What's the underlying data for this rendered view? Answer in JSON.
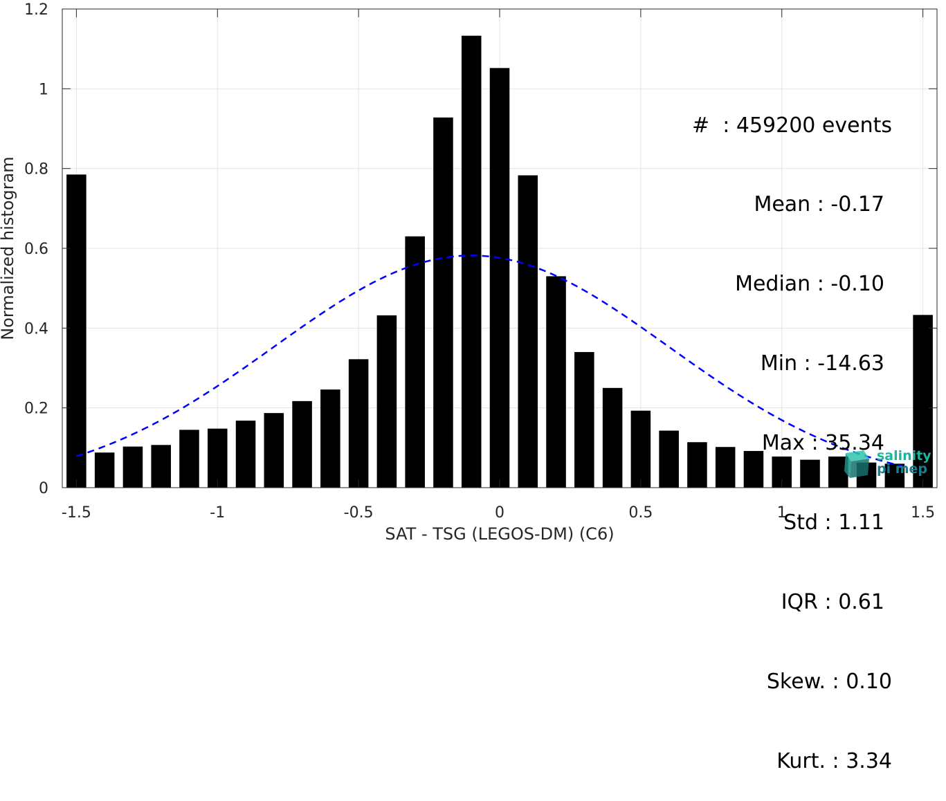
{
  "chart_data": {
    "type": "bar",
    "xlabel": "SAT - TSG (LEGOS-DM) (C6)",
    "ylabel": "Normalized histogram",
    "xlim": [
      -1.55,
      1.55
    ],
    "ylim": [
      0,
      1.2
    ],
    "x_ticks": [
      -1.5,
      -1,
      -0.5,
      0,
      0.5,
      1,
      1.5
    ],
    "x_tick_labels": [
      "-1.5",
      "-1",
      "-0.5",
      "0",
      "0.5",
      "1",
      "1.5"
    ],
    "y_ticks": [
      0,
      0.2,
      0.4,
      0.6,
      0.8,
      1,
      1.2
    ],
    "y_tick_labels": [
      "0",
      "0.2",
      "0.4",
      "0.6",
      "0.8",
      "1",
      "1.2"
    ],
    "grid": true,
    "bar_width": 0.07,
    "bar_color": "#000000",
    "bin_centers": [
      -1.5,
      -1.4,
      -1.3,
      -1.2,
      -1.1,
      -1.0,
      -0.9,
      -0.8,
      -0.7,
      -0.6,
      -0.5,
      -0.4,
      -0.3,
      -0.2,
      -0.1,
      0.0,
      0.1,
      0.2,
      0.3,
      0.4,
      0.5,
      0.6,
      0.7,
      0.8,
      0.9,
      1.0,
      1.1,
      1.2,
      1.3,
      1.4,
      1.5
    ],
    "values": [
      0.785,
      0.088,
      0.103,
      0.107,
      0.145,
      0.148,
      0.168,
      0.187,
      0.217,
      0.246,
      0.322,
      0.432,
      0.63,
      0.928,
      1.133,
      1.052,
      0.783,
      0.53,
      0.34,
      0.25,
      0.193,
      0.143,
      0.114,
      0.102,
      0.092,
      0.078,
      0.07,
      0.078,
      0.063,
      0.06,
      0.433
    ],
    "fit_curve": {
      "type": "gaussian",
      "mean": -0.1,
      "std": 0.7,
      "amplitude": 0.582,
      "x_range": [
        -1.5,
        1.45
      ],
      "color": "#0000ff",
      "style": "dashed"
    }
  },
  "stats": {
    "events": "#  : 459200 events",
    "mean": "Mean : -0.17",
    "median": "Median : -0.10",
    "min": "Min : -14.63",
    "max": "Max : 35.34",
    "std": "Std : 1.11",
    "iqr": "IQR : 0.61",
    "skew": "Skew. : 0.10",
    "kurt": "Kurt. : 3.34"
  },
  "logo": {
    "line1": "salinity",
    "line2": "pi mep",
    "colors": {
      "teal": "#1fb3a0",
      "dark": "#1a7e8c"
    }
  }
}
